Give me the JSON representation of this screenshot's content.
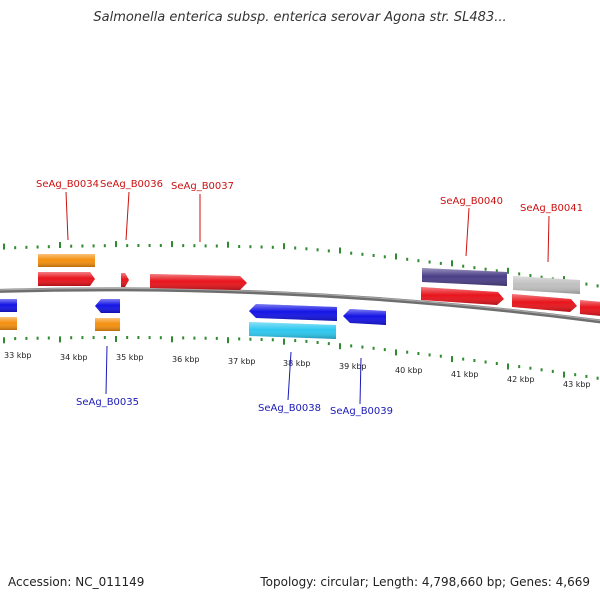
{
  "title": "Salmonella enterica subsp. enterica serovar Agona str. SL483...",
  "footer": {
    "accession": "Accession: NC_011149",
    "stats": "Topology: circular; Length: 4,798,660 bp; Genes: 4,669"
  },
  "colors": {
    "backbone": "#808080",
    "forward_cds": "#e8141c",
    "reverse_cds": "#1414e6",
    "forward_label": "#cc1111",
    "reverse_label": "#1a1ab8",
    "orange_feature": "#f5900f",
    "cyan_feature": "#2ec8f0",
    "purple_feature": "#4a3f88",
    "grey_feature": "#c0c0c0",
    "tick": "#2e8b2e"
  },
  "ticks": [
    {
      "label": "33 kbp"
    },
    {
      "label": "34 kbp"
    },
    {
      "label": "35 kbp"
    },
    {
      "label": "36 kbp"
    },
    {
      "label": "37 kbp"
    },
    {
      "label": "38 kbp"
    },
    {
      "label": "39 kbp"
    },
    {
      "label": "40 kbp"
    },
    {
      "label": "41 kbp"
    },
    {
      "label": "42 kbp"
    },
    {
      "label": "43 kbp"
    }
  ],
  "gene_labels": [
    {
      "text": "SeAg_B0034",
      "strand": "forward"
    },
    {
      "text": "SeAg_B0036",
      "strand": "forward"
    },
    {
      "text": "SeAg_B0037",
      "strand": "forward"
    },
    {
      "text": "SeAg_B0040",
      "strand": "forward"
    },
    {
      "text": "SeAg_B0041",
      "strand": "forward"
    },
    {
      "text": "SeAg_B0035",
      "strand": "reverse"
    },
    {
      "text": "SeAg_B0038",
      "strand": "reverse"
    },
    {
      "text": "SeAg_B0039",
      "strand": "reverse"
    }
  ]
}
